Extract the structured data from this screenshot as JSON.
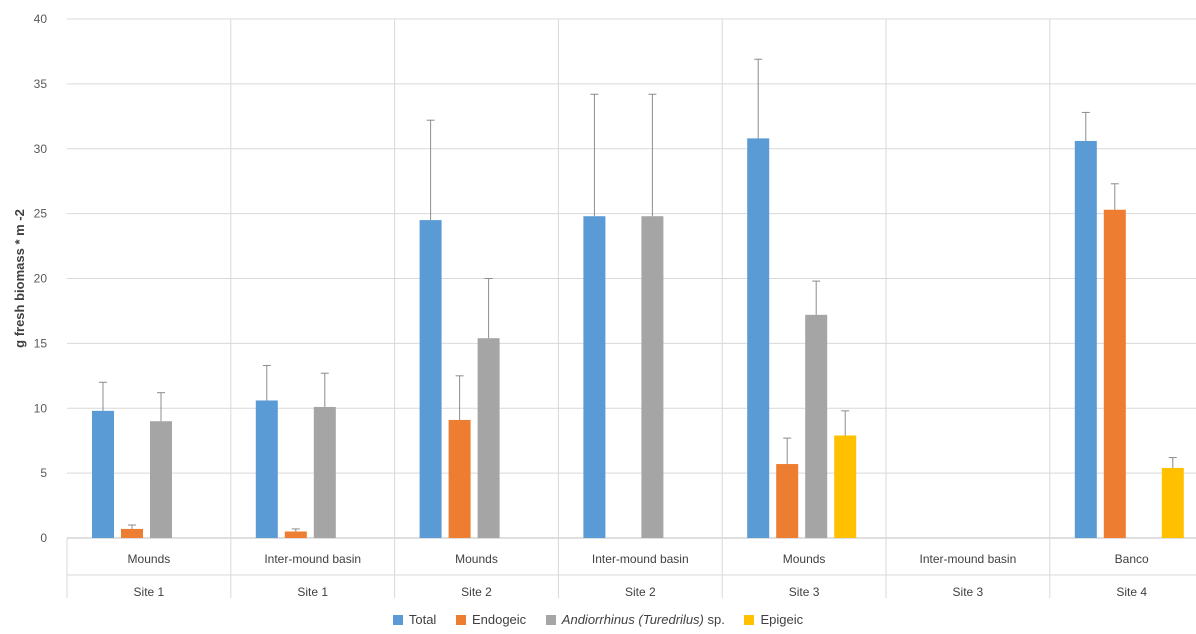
{
  "chart_data": {
    "type": "bar",
    "title": "",
    "xlabel": "",
    "ylabel": "g fresh biomass * m -2",
    "ylim": [
      0,
      40
    ],
    "y_ticks": [
      "0",
      "5",
      "10",
      "15",
      "20",
      "25",
      "30",
      "35",
      "40"
    ],
    "grid": true,
    "legend_position": "bottom",
    "groups": [
      {
        "habitat": "Mounds",
        "site": "Site 1"
      },
      {
        "habitat": "Inter-mound basin",
        "site": "Site 1"
      },
      {
        "habitat": "Mounds",
        "site": "Site 2"
      },
      {
        "habitat": "Inter-mound basin",
        "site": "Site 2"
      },
      {
        "habitat": "Mounds",
        "site": "Site 3"
      },
      {
        "habitat": "Inter-mound basin",
        "site": "Site 3"
      },
      {
        "habitat": "Banco",
        "site": "Site 4"
      }
    ],
    "series": [
      {
        "name": "Total",
        "color": "#5b9bd5",
        "values": [
          9.8,
          10.6,
          24.5,
          24.8,
          30.8,
          null,
          30.6
        ],
        "errors": [
          2.2,
          2.7,
          7.7,
          9.4,
          6.1,
          null,
          2.2
        ]
      },
      {
        "name": "Endogeic",
        "color": "#ed7d31",
        "values": [
          0.7,
          0.5,
          9.1,
          null,
          5.7,
          null,
          25.3
        ],
        "errors": [
          0.3,
          0.2,
          3.4,
          null,
          2.0,
          null,
          2.0
        ]
      },
      {
        "name_prefix": "Andiorrhinus (Turedrilus)",
        "name_suffix": " sp.",
        "color": "#a5a5a5",
        "values": [
          9.0,
          10.1,
          15.4,
          24.8,
          17.2,
          null,
          null
        ],
        "errors": [
          2.2,
          2.6,
          4.6,
          9.4,
          2.6,
          null,
          null
        ]
      },
      {
        "name": "Epigeic",
        "color": "#ffc000",
        "values": [
          null,
          null,
          null,
          null,
          7.9,
          null,
          5.4
        ],
        "errors": [
          null,
          null,
          null,
          null,
          1.9,
          null,
          0.8
        ]
      }
    ]
  }
}
